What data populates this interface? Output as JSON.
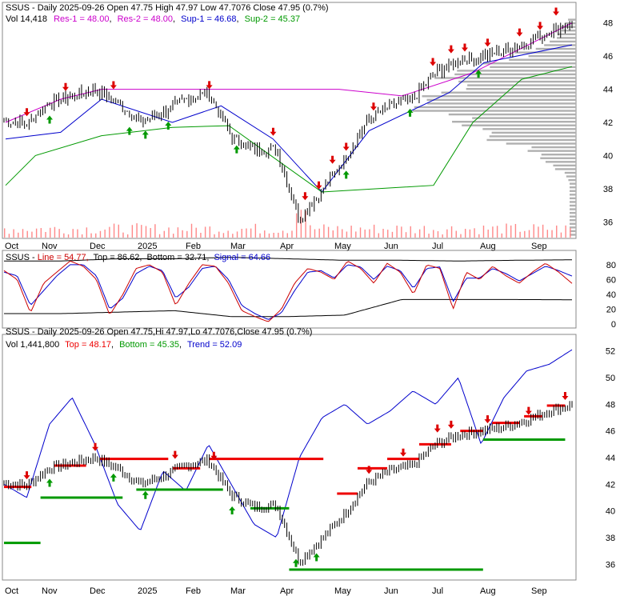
{
  "colors": {
    "price": "#000000",
    "res": "#cc00cc",
    "sup1": "#0000cc",
    "sup2": "#009900",
    "volume": "#ff8888",
    "profile": "#b0b0b0",
    "line": "#cc0000",
    "signal": "#0000cc",
    "stoch_band": "#000000",
    "trend": "#0000cc",
    "top_marker": "#ee0000",
    "bottom_marker": "#009900",
    "arrow_down": "#dd0000",
    "arrow_up": "#009900"
  },
  "chart_data": [
    {
      "type": "line",
      "panel": "price",
      "legend": {
        "line1": {
          "head": "SSUS - Daily 2025-09-26 Open 47.75   High 47.97   Low 47.7076   Close 47.95 (0.7%)"
        },
        "line2": [
          {
            "label": "Vol 14,418",
            "color": "#000000"
          },
          {
            "label": "Res-1 = 48.00",
            "color": "#cc00cc"
          },
          {
            "label": "Res-2 = 48.00",
            "color": "#cc00cc"
          },
          {
            "label": "Sup-1 = 46.68",
            "color": "#0000cc"
          },
          {
            "label": "Sup-2 = 45.37",
            "color": "#009900"
          }
        ]
      },
      "x_ticks": [
        "Oct",
        "Nov",
        "Dec",
        "2025",
        "Feb",
        "Mar",
        "Apr",
        "May",
        "Jun",
        "Jul",
        "Aug",
        "Sep"
      ],
      "y_ticks": [
        36,
        38,
        40,
        42,
        44,
        46,
        48
      ],
      "ylim": [
        35,
        49
      ],
      "series": [
        {
          "name": "Close",
          "x": [
            "2024-09-30",
            "2024-10-15",
            "2024-11-01",
            "2024-11-15",
            "2024-12-02",
            "2024-12-16",
            "2025-01-02",
            "2025-01-15",
            "2025-02-03",
            "2025-02-18",
            "2025-03-03",
            "2025-03-14",
            "2025-04-01",
            "2025-04-08",
            "2025-04-15",
            "2025-05-01",
            "2025-05-15",
            "2025-06-02",
            "2025-06-16",
            "2025-07-01",
            "2025-07-15",
            "2025-08-01",
            "2025-08-15",
            "2025-09-02",
            "2025-09-15",
            "2025-09-26"
          ],
          "values": [
            42.1,
            41.9,
            43.2,
            43.6,
            44.0,
            43.2,
            42.0,
            42.6,
            43.4,
            43.8,
            41.2,
            40.3,
            40.4,
            36.2,
            37.9,
            39.8,
            42.1,
            43.0,
            43.4,
            45.0,
            45.7,
            46.0,
            46.3,
            46.8,
            47.5,
            47.95
          ]
        },
        {
          "name": "Res",
          "x": [
            "2024-10-01",
            "2024-11-05",
            "2024-12-01",
            "2025-02-15",
            "2025-04-01",
            "2025-05-01",
            "2025-06-10",
            "2025-07-25",
            "2025-08-15",
            "2025-09-26"
          ],
          "values": [
            42.0,
            43.4,
            44.0,
            44.0,
            44.0,
            44.0,
            43.6,
            45.0,
            46.0,
            48.0
          ]
        },
        {
          "name": "Sup-1",
          "x": [
            "2024-10-01",
            "2024-11-05",
            "2024-12-01",
            "2025-01-15",
            "2025-02-15",
            "2025-03-20",
            "2025-04-20",
            "2025-05-20",
            "2025-07-10",
            "2025-08-01",
            "2025-09-26"
          ],
          "values": [
            41.0,
            41.4,
            43.4,
            42.0,
            43.0,
            41.0,
            37.8,
            41.5,
            43.8,
            45.6,
            46.68
          ]
        },
        {
          "name": "Sup-2",
          "x": [
            "2024-10-01",
            "2024-10-20",
            "2024-12-01",
            "2025-01-15",
            "2025-02-20",
            "2025-04-20",
            "2025-06-30",
            "2025-07-25",
            "2025-08-25",
            "2025-09-26"
          ],
          "values": [
            38.2,
            40.0,
            41.2,
            41.7,
            41.8,
            37.8,
            38.2,
            42.0,
            44.6,
            45.37
          ]
        }
      ]
    },
    {
      "type": "line",
      "panel": "stochastic",
      "legend": [
        {
          "label": "SSUS - ",
          "color": "#000000"
        },
        {
          "label": "Line = 54.77,",
          "color": "#cc0000"
        },
        {
          "label": "Top = 86.62,",
          "color": "#000000"
        },
        {
          "label": "Bottom = 32.71,",
          "color": "#000000"
        },
        {
          "label": "Signal = 64.66",
          "color": "#0000cc"
        }
      ],
      "y_ticks": [
        0,
        20,
        40,
        60,
        80
      ],
      "ylim": [
        0,
        95
      ],
      "series": [
        {
          "name": "Line",
          "values": [
            72,
            60,
            15,
            55,
            70,
            85,
            78,
            60,
            12,
            40,
            75,
            80,
            70,
            25,
            55,
            80,
            78,
            55,
            18,
            10,
            3,
            20,
            55,
            75,
            70,
            60,
            85,
            75,
            55,
            82,
            70,
            40,
            80,
            75,
            20,
            70,
            60,
            78,
            65,
            55,
            70,
            82,
            70,
            54.77
          ]
        },
        {
          "name": "Signal",
          "values": [
            70,
            65,
            25,
            45,
            65,
            80,
            80,
            65,
            20,
            35,
            68,
            78,
            72,
            35,
            50,
            75,
            78,
            60,
            25,
            14,
            6,
            15,
            45,
            70,
            72,
            62,
            80,
            77,
            60,
            78,
            72,
            48,
            75,
            77,
            30,
            62,
            62,
            75,
            68,
            58,
            68,
            78,
            72,
            64.66
          ]
        }
      ],
      "bands": [
        {
          "name": "Top",
          "values": [
            85,
            85,
            88,
            88,
            90,
            88,
            86,
            86,
            85,
            86,
            86.62
          ]
        },
        {
          "name": "Bottom",
          "values": [
            14,
            14,
            16,
            18,
            10,
            10,
            12,
            33,
            33,
            33,
            32.71
          ]
        }
      ]
    },
    {
      "type": "line",
      "panel": "trend",
      "legend": {
        "line1": {
          "head": "SSUS - Daily 2025-09-26 Open 47.75,Hi 47.97,Lo 47.7076,Close 47.95 (0.7%)"
        },
        "line2": [
          {
            "label": "Vol 1,441,800",
            "color": "#000000"
          },
          {
            "label": "Top = 48.17",
            "color": "#ee0000"
          },
          {
            "label": "Bottom = 45.35",
            "color": "#009900"
          },
          {
            "label": "Trend = 52.09",
            "color": "#0000cc"
          }
        ]
      },
      "x_ticks": [
        "Oct",
        "Nov",
        "Dec",
        "2025",
        "Feb",
        "Mar",
        "Apr",
        "May",
        "Jun",
        "Jul",
        "Aug",
        "Sep"
      ],
      "y_ticks": [
        36,
        38,
        40,
        42,
        44,
        46,
        48,
        50,
        52
      ],
      "ylim": [
        35,
        53
      ],
      "series": [
        {
          "name": "Close",
          "values": [
            42.1,
            41.9,
            43.2,
            43.6,
            44.0,
            43.2,
            42.0,
            42.6,
            43.4,
            43.8,
            41.2,
            40.3,
            40.4,
            36.2,
            37.9,
            39.8,
            42.1,
            43.0,
            43.4,
            45.0,
            45.7,
            46.0,
            46.3,
            46.8,
            47.5,
            47.95
          ]
        },
        {
          "name": "Trend",
          "values": [
            42.0,
            41.0,
            46.5,
            48.5,
            45.0,
            40.5,
            38.5,
            43.0,
            41.5,
            45.0,
            42.0,
            39.0,
            38.0,
            44.0,
            47.0,
            48.0,
            46.5,
            47.5,
            49.0,
            48.0,
            50.0,
            45.0,
            48.5,
            50.5,
            51.0,
            52.09
          ]
        }
      ]
    }
  ]
}
